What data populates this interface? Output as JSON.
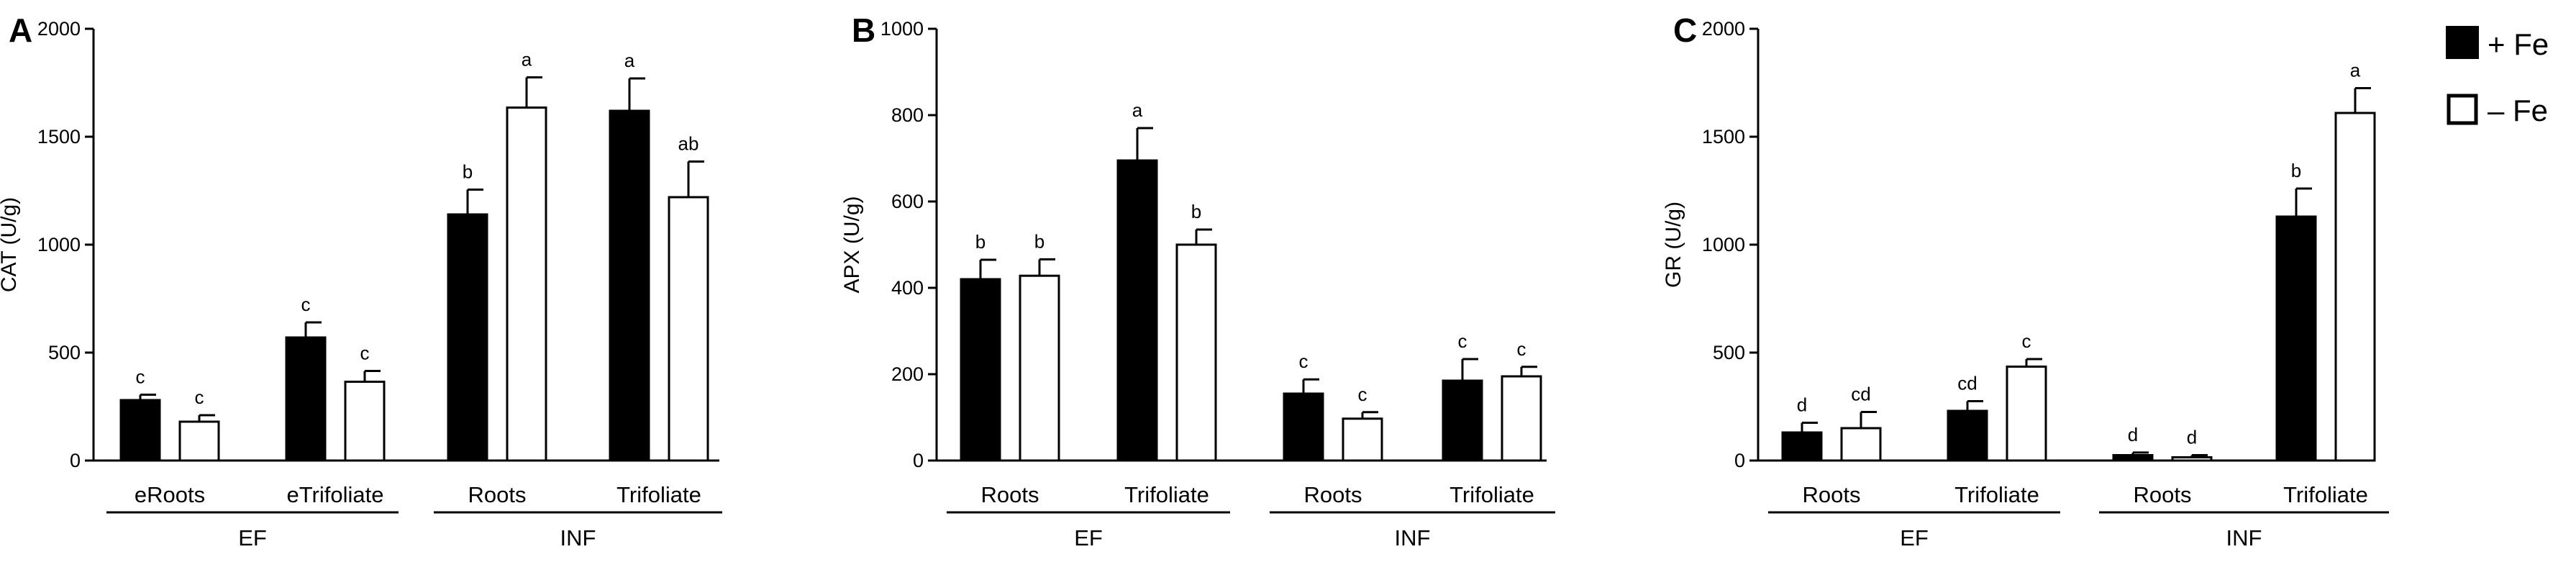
{
  "legend": [
    {
      "label": "+ Fe",
      "fill": "#000000"
    },
    {
      "label": "– Fe",
      "fill": "#ffffff"
    }
  ],
  "chart_data": [
    {
      "type": "bar",
      "panel": "A",
      "title": "",
      "ylabel": "CAT (U/g)",
      "ylim": [
        0,
        2000
      ],
      "yticks": [
        0,
        500,
        1000,
        1500,
        2000
      ],
      "categories": [
        "eRoots",
        "eTrifoliate",
        "Roots",
        "Trifoliate"
      ],
      "groups": [
        {
          "label": "EF",
          "categories": [
            0,
            1
          ]
        },
        {
          "label": "INF",
          "categories": [
            2,
            3
          ]
        }
      ],
      "series": [
        {
          "name": "+ Fe",
          "values": [
            280,
            570,
            1140,
            1620
          ],
          "errors": [
            25,
            70,
            115,
            150
          ],
          "sig": [
            "c",
            "c",
            "b",
            "a"
          ]
        },
        {
          "name": "– Fe",
          "values": [
            180,
            365,
            1635,
            1220
          ],
          "errors": [
            30,
            50,
            140,
            165
          ],
          "sig": [
            "c",
            "c",
            "a",
            "ab"
          ]
        }
      ]
    },
    {
      "type": "bar",
      "panel": "B",
      "title": "",
      "ylabel": "APX (U/g)",
      "ylim": [
        0,
        1000
      ],
      "yticks": [
        0,
        200,
        400,
        600,
        800,
        1000
      ],
      "categories": [
        "Roots",
        "Trifoliate",
        "Roots",
        "Trifoliate"
      ],
      "groups": [
        {
          "label": "EF",
          "categories": [
            0,
            1
          ]
        },
        {
          "label": "INF",
          "categories": [
            2,
            3
          ]
        }
      ],
      "series": [
        {
          "name": "+ Fe",
          "values": [
            420,
            695,
            155,
            185
          ],
          "errors": [
            45,
            75,
            33,
            50
          ],
          "sig": [
            "b",
            "a",
            "c",
            "c"
          ]
        },
        {
          "name": "– Fe",
          "values": [
            428,
            500,
            97,
            195
          ],
          "errors": [
            38,
            35,
            15,
            22
          ],
          "sig": [
            "b",
            "b",
            "c",
            "c"
          ]
        }
      ]
    },
    {
      "type": "bar",
      "panel": "C",
      "title": "",
      "ylabel": "GR (U/g)",
      "ylim": [
        0,
        2000
      ],
      "yticks": [
        0,
        500,
        1000,
        1500,
        2000
      ],
      "categories": [
        "Roots",
        "Trifoliate",
        "Roots",
        "Trifoliate"
      ],
      "groups": [
        {
          "label": "EF",
          "categories": [
            0,
            1
          ]
        },
        {
          "label": "INF",
          "categories": [
            2,
            3
          ]
        }
      ],
      "series": [
        {
          "name": "+ Fe",
          "values": [
            130,
            230,
            25,
            1130
          ],
          "errors": [
            45,
            45,
            12,
            130
          ],
          "sig": [
            "d",
            "cd",
            "d",
            "b"
          ]
        },
        {
          "name": "– Fe",
          "values": [
            150,
            435,
            15,
            1610
          ],
          "errors": [
            75,
            35,
            10,
            115
          ],
          "sig": [
            "cd",
            "c",
            "d",
            "a"
          ]
        }
      ]
    }
  ]
}
